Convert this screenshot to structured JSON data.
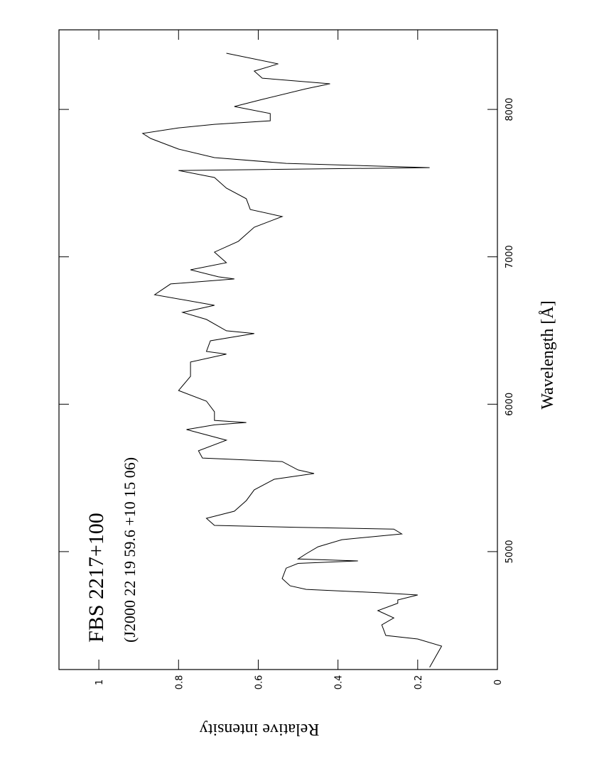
{
  "chart_data": {
    "type": "line",
    "title": "FBS 2217+100",
    "subtitle": "(J2000 22 19 59.6 +10 15 06)",
    "x_label": "Wavelength [Å]",
    "y_label": "Relative intensity",
    "color": "#000000",
    "x": [
      4215,
      4359,
      4407,
      4431,
      4503,
      4550,
      4600,
      4650,
      4672,
      4706,
      4720,
      4744,
      4768,
      4817,
      4888,
      4920,
      4937,
      4950,
      4985,
      5033,
      5081,
      5120,
      5153,
      5165,
      5178,
      5226,
      5274,
      5346,
      5419,
      5491,
      5530,
      5554,
      5611,
      5635,
      5684,
      5756,
      5828,
      5860,
      5876,
      5890,
      5949,
      6021,
      6093,
      6189,
      6286,
      6340,
      6358,
      6430,
      6480,
      6498,
      6575,
      6623,
      6671,
      6743,
      6816,
      6850,
      6864,
      6912,
      6960,
      7032,
      7105,
      7201,
      7273,
      7321,
      7394,
      7466,
      7538,
      7586,
      7605,
      7634,
      7673,
      7731,
      7803,
      7837,
      7875,
      7899,
      7923,
      7972,
      8020,
      8068,
      8140,
      8174,
      8212,
      8260,
      8309,
      8381
    ],
    "values": [
      0.17,
      0.14,
      0.2,
      0.28,
      0.29,
      0.26,
      0.3,
      0.25,
      0.25,
      0.2,
      0.29,
      0.48,
      0.52,
      0.54,
      0.53,
      0.5,
      0.35,
      0.5,
      0.48,
      0.45,
      0.39,
      0.24,
      0.26,
      0.5,
      0.71,
      0.73,
      0.66,
      0.63,
      0.61,
      0.56,
      0.46,
      0.5,
      0.54,
      0.74,
      0.75,
      0.68,
      0.78,
      0.71,
      0.63,
      0.71,
      0.71,
      0.73,
      0.8,
      0.77,
      0.77,
      0.68,
      0.73,
      0.72,
      0.61,
      0.68,
      0.73,
      0.79,
      0.71,
      0.86,
      0.82,
      0.66,
      0.7,
      0.77,
      0.68,
      0.71,
      0.65,
      0.61,
      0.54,
      0.62,
      0.63,
      0.68,
      0.71,
      0.8,
      0.17,
      0.53,
      0.71,
      0.8,
      0.87,
      0.89,
      0.8,
      0.71,
      0.57,
      0.57,
      0.66,
      0.59,
      0.48,
      0.42,
      0.59,
      0.61,
      0.55,
      0.68
    ],
    "xlim": [
      4200,
      8540
    ],
    "xticks": [
      5000,
      6000,
      7000,
      8000
    ],
    "ylim": [
      0,
      1.1
    ],
    "yticks": [
      0,
      0.2,
      0.4,
      0.6,
      0.8,
      1
    ]
  }
}
